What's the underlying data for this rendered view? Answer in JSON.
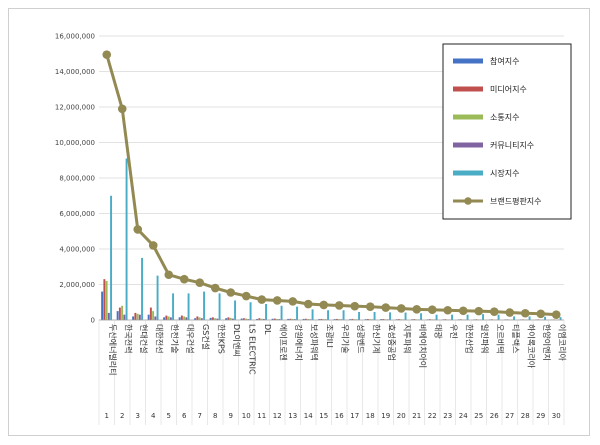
{
  "chart_data": {
    "type": "bar",
    "title": "",
    "xlabel": "",
    "ylabel": "",
    "ylim": [
      0,
      16000000
    ],
    "yticks": [
      "0",
      "2,000,000",
      "4,000,000",
      "6,000,000",
      "8,000,000",
      "10,000,000",
      "12,000,000",
      "14,000,000",
      "16,000,000"
    ],
    "grid": true,
    "legend_position": "top-right",
    "ranks": [
      "1",
      "2",
      "3",
      "4",
      "5",
      "6",
      "7",
      "8",
      "9",
      "10",
      "11",
      "12",
      "13",
      "14",
      "15",
      "16",
      "17",
      "18",
      "19",
      "20",
      "21",
      "22",
      "23",
      "24",
      "25",
      "26",
      "27",
      "28",
      "29",
      "30"
    ],
    "categories": [
      "두산에너빌리티",
      "한국전력",
      "현대건설",
      "대한전선",
      "한전기술",
      "대우건설",
      "GS건설",
      "한전KPS",
      "DL이앤씨",
      "LS ELECTRIC",
      "DL",
      "에이프로젠",
      "강원에너지",
      "보성파워텍",
      "조광ILI",
      "우리기술",
      "성광벤드",
      "한신기계",
      "효성중공업",
      "지투파워",
      "비에이치아이",
      "태광",
      "우진",
      "한전산업",
      "일진파워",
      "오르비텍",
      "티플랙스",
      "하이록코리아",
      "한양이엔지",
      "이엠코리아"
    ],
    "series": [
      {
        "name": "참여지수",
        "color": "#4472c4",
        "kind": "bar",
        "values": [
          1600000,
          500000,
          200000,
          300000,
          150000,
          150000,
          100000,
          120000,
          100000,
          80000,
          60000,
          70000,
          60000,
          60000,
          50000,
          50000,
          45000,
          45000,
          50000,
          40000,
          40000,
          35000,
          35000,
          35000,
          30000,
          30000,
          30000,
          30000,
          25000,
          25000
        ]
      },
      {
        "name": "미디어지수",
        "color": "#c0504d",
        "kind": "bar",
        "values": [
          2300000,
          700000,
          400000,
          700000,
          250000,
          250000,
          200000,
          150000,
          150000,
          100000,
          100000,
          80000,
          70000,
          70000,
          60000,
          60000,
          60000,
          55000,
          55000,
          50000,
          50000,
          45000,
          45000,
          40000,
          40000,
          40000,
          35000,
          35000,
          35000,
          30000
        ]
      },
      {
        "name": "소통지수",
        "color": "#9bbb59",
        "kind": "bar",
        "values": [
          2200000,
          800000,
          350000,
          500000,
          200000,
          200000,
          150000,
          100000,
          120000,
          80000,
          70000,
          60000,
          60000,
          55000,
          50000,
          50000,
          45000,
          45000,
          40000,
          40000,
          35000,
          35000,
          30000,
          30000,
          30000,
          25000,
          25000,
          25000,
          20000,
          20000
        ]
      },
      {
        "name": "커뮤니티지수",
        "color": "#8064a2",
        "kind": "bar",
        "values": [
          400000,
          300000,
          300000,
          200000,
          150000,
          150000,
          100000,
          80000,
          80000,
          50000,
          60000,
          50000,
          50000,
          40000,
          40000,
          40000,
          35000,
          35000,
          35000,
          30000,
          30000,
          30000,
          25000,
          25000,
          25000,
          20000,
          20000,
          20000,
          20000,
          20000
        ]
      },
      {
        "name": "시장지수",
        "color": "#4bacc6",
        "kind": "bar",
        "values": [
          7000000,
          9100000,
          3500000,
          2500000,
          1500000,
          1500000,
          1600000,
          1500000,
          1100000,
          1000000,
          900000,
          800000,
          750000,
          600000,
          550000,
          550000,
          450000,
          450000,
          430000,
          420000,
          380000,
          300000,
          300000,
          300000,
          330000,
          300000,
          200000,
          200000,
          180000,
          160000
        ]
      },
      {
        "name": "브랜드평판지수",
        "color": "#938953",
        "kind": "line",
        "values": [
          14950000,
          11900000,
          5100000,
          4200000,
          2550000,
          2300000,
          2100000,
          1800000,
          1550000,
          1350000,
          1150000,
          1100000,
          1050000,
          900000,
          850000,
          820000,
          780000,
          750000,
          700000,
          650000,
          600000,
          580000,
          550000,
          520000,
          500000,
          470000,
          420000,
          380000,
          350000,
          300000
        ]
      }
    ]
  }
}
